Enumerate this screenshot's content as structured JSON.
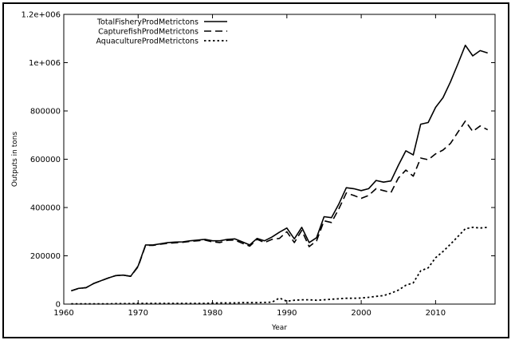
{
  "chart_data": {
    "type": "line",
    "xlabel": "Year",
    "ylabel": "Outputs in tons",
    "xlim": [
      1960,
      2018
    ],
    "ylim": [
      0,
      1200000
    ],
    "xticks": [
      1960,
      1970,
      1980,
      1990,
      2000,
      2010
    ],
    "yticks": [
      0,
      200000,
      400000,
      600000,
      800000,
      1000000,
      1200000
    ],
    "ytick_labels": [
      "0",
      "200000",
      "400000",
      "600000",
      "800000",
      "1e+006",
      "1.2e+006"
    ],
    "legend_position": "top-left",
    "x": [
      1961,
      1962,
      1963,
      1964,
      1965,
      1966,
      1967,
      1968,
      1969,
      1970,
      1971,
      1972,
      1973,
      1974,
      1975,
      1976,
      1977,
      1978,
      1979,
      1980,
      1981,
      1982,
      1983,
      1984,
      1985,
      1986,
      1987,
      1988,
      1989,
      1990,
      1991,
      1992,
      1993,
      1994,
      1995,
      1996,
      1997,
      1998,
      1999,
      2000,
      2001,
      2002,
      2003,
      2004,
      2005,
      2006,
      2007,
      2008,
      2009,
      2010,
      2011,
      2012,
      2013,
      2014,
      2015,
      2016,
      2017
    ],
    "series": [
      {
        "name": "TotalFisheryProdMetrictons",
        "dash": "solid",
        "values": [
          55000,
          65000,
          68000,
          85000,
          97000,
          108000,
          118000,
          120000,
          115000,
          158000,
          245000,
          245000,
          250000,
          255000,
          257000,
          258000,
          262000,
          265000,
          268000,
          262000,
          262000,
          268000,
          270000,
          258000,
          245000,
          272000,
          262000,
          278000,
          298000,
          315000,
          270000,
          318000,
          255000,
          275000,
          362000,
          358000,
          415000,
          482000,
          478000,
          470000,
          478000,
          512000,
          505000,
          510000,
          575000,
          635000,
          618000,
          745000,
          752000,
          815000,
          855000,
          920000,
          995000,
          1072000,
          1028000,
          1050000,
          1040000
        ]
      },
      {
        "name": "CapturefishProdMetrictons",
        "dash": "dashed",
        "values": [
          55000,
          65000,
          68000,
          85000,
          97000,
          108000,
          118000,
          120000,
          115000,
          155000,
          243000,
          243000,
          248000,
          252000,
          254000,
          256000,
          260000,
          262000,
          265000,
          258000,
          255000,
          264000,
          265000,
          252000,
          240000,
          268000,
          255000,
          268000,
          272000,
          300000,
          255000,
          305000,
          238000,
          262000,
          345000,
          338000,
          395000,
          460000,
          450000,
          438000,
          450000,
          478000,
          470000,
          462000,
          522000,
          555000,
          530000,
          605000,
          598000,
          622000,
          638000,
          665000,
          712000,
          758000,
          715000,
          738000,
          722000
        ]
      },
      {
        "name": "AquacultureProdMetrictons",
        "dash": "dotted",
        "values": [
          1000,
          1000,
          1000,
          1000,
          1000,
          1000,
          2000,
          2000,
          2000,
          3000,
          3000,
          3000,
          3000,
          3000,
          3000,
          3000,
          3000,
          3000,
          3000,
          4000,
          5000,
          5000,
          5000,
          6000,
          6000,
          6000,
          7000,
          8000,
          25000,
          12000,
          16000,
          18000,
          18000,
          16000,
          18000,
          20000,
          22000,
          24000,
          24000,
          25000,
          28000,
          32000,
          35000,
          45000,
          58000,
          78000,
          88000,
          138000,
          150000,
          192000,
          218000,
          248000,
          280000,
          312000,
          318000,
          315000,
          318000
        ]
      }
    ]
  }
}
